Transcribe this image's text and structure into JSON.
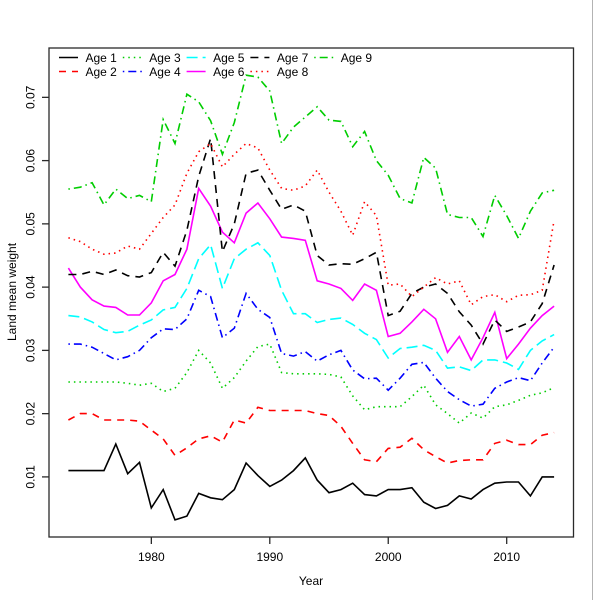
{
  "figure": {
    "background": "#ffffff",
    "plot_box_color": "#2a2a2a",
    "window_border_color": "#b3b3b3"
  },
  "chart_data": {
    "type": "line",
    "title": "",
    "xlabel": "Year",
    "ylabel": "Land mean weight",
    "grid": false,
    "legend_position": "top-left inside, 5 columns x 2 rows",
    "xlim": [
      1971.36,
      2015.64
    ],
    "ylim": [
      0.0005,
      0.0778
    ],
    "x_tick_values": [
      1980,
      1990,
      2000,
      2010
    ],
    "x_tick_labels": [
      "1980",
      "1990",
      "2000",
      "2010"
    ],
    "y_tick_values": [
      0.01,
      0.02,
      0.03,
      0.04,
      0.05,
      0.06,
      0.07
    ],
    "y_tick_labels": [
      "0.01",
      "0.02",
      "0.03",
      "0.04",
      "0.05",
      "0.06",
      "0.07"
    ],
    "years": [
      1973,
      1974,
      1975,
      1976,
      1977,
      1978,
      1979,
      1980,
      1981,
      1982,
      1983,
      1984,
      1985,
      1986,
      1987,
      1988,
      1989,
      1990,
      1991,
      1992,
      1993,
      1994,
      1995,
      1996,
      1997,
      1998,
      1999,
      2000,
      2001,
      2002,
      2003,
      2004,
      2005,
      2006,
      2007,
      2008,
      2009,
      2010,
      2011,
      2012,
      2013,
      2014
    ],
    "series": [
      {
        "name": "Age 1",
        "color": "#000000",
        "linetype": "solid",
        "dash": "",
        "values": [
          0.011,
          0.011,
          0.011,
          0.011,
          0.0152,
          0.0105,
          0.0123,
          0.0051,
          0.008,
          0.0032,
          0.0038,
          0.0074,
          0.0067,
          0.0064,
          0.008,
          0.0122,
          0.0102,
          0.0085,
          0.0095,
          0.011,
          0.013,
          0.0095,
          0.0075,
          0.008,
          0.009,
          0.0072,
          0.007,
          0.008,
          0.008,
          0.0083,
          0.006,
          0.005,
          0.0055,
          0.007,
          0.0065,
          0.008,
          0.009,
          0.0092,
          0.0092,
          0.007,
          0.01,
          0.01
        ]
      },
      {
        "name": "Age 2",
        "color": "#FF0000",
        "linetype": "dashed",
        "dash": "7,6",
        "values": [
          0.019,
          0.02,
          0.02,
          0.019,
          0.019,
          0.019,
          0.0188,
          0.0174,
          0.016,
          0.0134,
          0.0146,
          0.016,
          0.0165,
          0.0155,
          0.019,
          0.0185,
          0.021,
          0.0205,
          0.0205,
          0.0205,
          0.0205,
          0.02,
          0.0197,
          0.018,
          0.0153,
          0.0127,
          0.0124,
          0.0145,
          0.0147,
          0.0161,
          0.0143,
          0.0132,
          0.0122,
          0.0126,
          0.0127,
          0.0127,
          0.0153,
          0.0158,
          0.0151,
          0.0151,
          0.0166,
          0.017
        ]
      },
      {
        "name": "Age 3",
        "color": "#00CD00",
        "linetype": "dotted",
        "dash": "1.5,4",
        "values": [
          0.025,
          0.025,
          0.025,
          0.025,
          0.025,
          0.0248,
          0.0245,
          0.0248,
          0.0235,
          0.024,
          0.0265,
          0.03,
          0.028,
          0.024,
          0.0257,
          0.0283,
          0.0306,
          0.031,
          0.0265,
          0.0263,
          0.0263,
          0.0263,
          0.0262,
          0.0258,
          0.0228,
          0.0206,
          0.0211,
          0.0211,
          0.0211,
          0.0227,
          0.0245,
          0.0214,
          0.02,
          0.0185,
          0.0201,
          0.0193,
          0.0211,
          0.0214,
          0.0221,
          0.0229,
          0.0233,
          0.0241
        ]
      },
      {
        "name": "Age 4",
        "color": "#0000FF",
        "linetype": "dotdash",
        "dash": "1.5,4,8,4",
        "values": [
          0.031,
          0.031,
          0.0305,
          0.0295,
          0.0285,
          0.029,
          0.03,
          0.032,
          0.0334,
          0.0333,
          0.035,
          0.0395,
          0.0385,
          0.032,
          0.0335,
          0.039,
          0.0365,
          0.0352,
          0.0295,
          0.0291,
          0.0298,
          0.0283,
          0.0293,
          0.03,
          0.0269,
          0.0255,
          0.0256,
          0.0237,
          0.0256,
          0.0278,
          0.0281,
          0.0256,
          0.0235,
          0.0222,
          0.0212,
          0.0215,
          0.024,
          0.025,
          0.0257,
          0.0252,
          0.028,
          0.0305
        ]
      },
      {
        "name": "Age 5",
        "color": "#00FFFF",
        "linetype": "longdash",
        "dash": "11,5",
        "values": [
          0.0355,
          0.0353,
          0.0345,
          0.0333,
          0.0328,
          0.033,
          0.034,
          0.0348,
          0.0364,
          0.0368,
          0.0398,
          0.0445,
          0.0467,
          0.0398,
          0.0445,
          0.046,
          0.047,
          0.045,
          0.0395,
          0.0358,
          0.0358,
          0.0344,
          0.0349,
          0.0351,
          0.0341,
          0.0327,
          0.0317,
          0.0288,
          0.0303,
          0.0305,
          0.0308,
          0.03,
          0.0272,
          0.0274,
          0.0268,
          0.0285,
          0.0285,
          0.028,
          0.027,
          0.03,
          0.0315,
          0.0325
        ]
      },
      {
        "name": "Age 6",
        "color": "#FF00FF",
        "linetype": "solid",
        "dash": "",
        "values": [
          0.043,
          0.04,
          0.038,
          0.037,
          0.0368,
          0.0356,
          0.0356,
          0.0375,
          0.041,
          0.042,
          0.046,
          0.0556,
          0.0528,
          0.0487,
          0.047,
          0.0517,
          0.0533,
          0.0508,
          0.0479,
          0.0477,
          0.0474,
          0.041,
          0.0405,
          0.0398,
          0.0379,
          0.0405,
          0.0395,
          0.0322,
          0.0327,
          0.0345,
          0.0365,
          0.035,
          0.0297,
          0.0322,
          0.0285,
          0.032,
          0.036,
          0.0287,
          0.031,
          0.0335,
          0.0355,
          0.037
        ]
      },
      {
        "name": "Age 7",
        "color": "#000000",
        "linetype": "dashed",
        "dash": "8,6",
        "values": [
          0.042,
          0.042,
          0.0425,
          0.042,
          0.0427,
          0.0418,
          0.0416,
          0.0423,
          0.0455,
          0.0433,
          0.049,
          0.0575,
          0.0635,
          0.0456,
          0.05,
          0.058,
          0.0585,
          0.0553,
          0.0523,
          0.053,
          0.052,
          0.045,
          0.0435,
          0.0437,
          0.0436,
          0.0445,
          0.0455,
          0.0355,
          0.0362,
          0.039,
          0.04,
          0.0405,
          0.039,
          0.0361,
          0.034,
          0.031,
          0.0348,
          0.033,
          0.0337,
          0.0345,
          0.0374,
          0.0435
        ]
      },
      {
        "name": "Age 8",
        "color": "#FF0000",
        "linetype": "dotted",
        "dash": "1.5,4",
        "values": [
          0.0478,
          0.0472,
          0.046,
          0.0452,
          0.0454,
          0.0465,
          0.046,
          0.0485,
          0.051,
          0.053,
          0.058,
          0.0614,
          0.0627,
          0.059,
          0.061,
          0.0627,
          0.062,
          0.0585,
          0.0556,
          0.0553,
          0.056,
          0.0585,
          0.055,
          0.052,
          0.0482,
          0.0535,
          0.0513,
          0.0403,
          0.0405,
          0.0385,
          0.04,
          0.0415,
          0.0405,
          0.041,
          0.0372,
          0.0385,
          0.0388,
          0.0377,
          0.0387,
          0.0388,
          0.0395,
          0.0506
        ]
      },
      {
        "name": "Age 9",
        "color": "#00CD00",
        "linetype": "dotdash",
        "dash": "1.5,4,8,4",
        "values": [
          0.0555,
          0.0558,
          0.0565,
          0.053,
          0.0555,
          0.054,
          0.0545,
          0.0535,
          0.0665,
          0.0627,
          0.0705,
          0.0693,
          0.0663,
          0.061,
          0.066,
          0.0735,
          0.0732,
          0.071,
          0.0627,
          0.0653,
          0.0669,
          0.0685,
          0.0664,
          0.0662,
          0.0622,
          0.0646,
          0.06,
          0.0577,
          0.054,
          0.0533,
          0.0605,
          0.0588,
          0.0515,
          0.051,
          0.051,
          0.048,
          0.0545,
          0.0513,
          0.0477,
          0.052,
          0.0549,
          0.0553
        ]
      }
    ]
  }
}
